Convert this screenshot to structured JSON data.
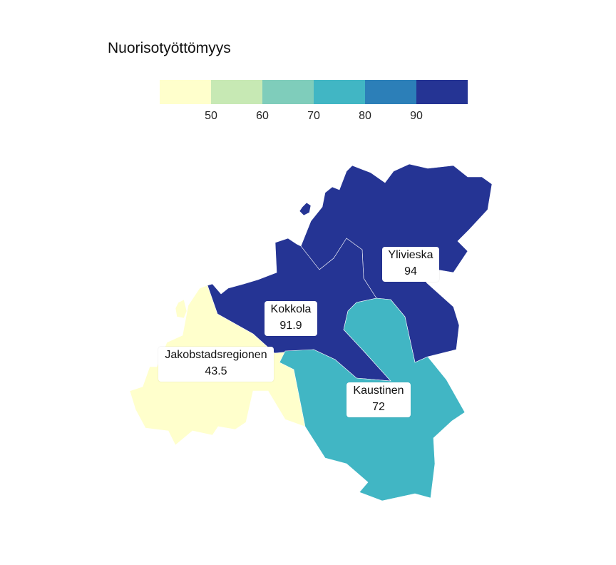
{
  "legend": {
    "title": "Nuorisotyöttömyys",
    "colors": [
      "#ffffcc",
      "#c7e9b4",
      "#7fcdbb",
      "#41b6c4",
      "#2c7fb8",
      "#253494"
    ],
    "breaks": [
      "50",
      "60",
      "70",
      "80",
      "90"
    ]
  },
  "regions": [
    {
      "name": "Jakobstadsregionen",
      "value": "43.5",
      "color": "#ffffcc"
    },
    {
      "name": "Kokkola",
      "value": "91.9",
      "color": "#253494"
    },
    {
      "name": "Ylivieska",
      "value": "94",
      "color": "#253494"
    },
    {
      "name": "Kaustinen",
      "value": "72",
      "color": "#41b6c4"
    }
  ]
}
